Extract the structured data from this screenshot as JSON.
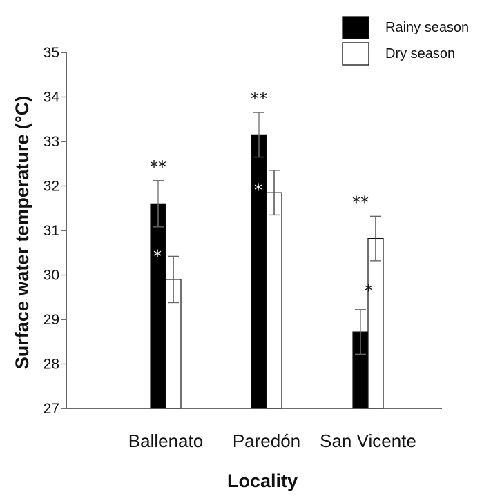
{
  "chart_data": {
    "type": "bar",
    "title": "",
    "xlabel": "Locality",
    "ylabel": "Surface water temperature (°C)",
    "ylim": [
      27,
      35
    ],
    "yticks": [
      "27",
      "28",
      "29",
      "30",
      "31",
      "32",
      "33",
      "34",
      "35"
    ],
    "categories": [
      "Ballenato",
      "Paredón",
      "San Vicente"
    ],
    "series": [
      {
        "name": "Rainy season",
        "color": "#000000",
        "values": [
          31.6,
          33.15,
          28.72
        ],
        "error": [
          0.52,
          0.5,
          0.5
        ],
        "annotations": [
          "",
          "",
          ""
        ]
      },
      {
        "name": "Dry season",
        "color": "#ffffff",
        "values": [
          29.9,
          31.85,
          30.82
        ],
        "error": [
          0.52,
          0.5,
          0.5
        ],
        "annotations": [
          "",
          "",
          ""
        ]
      }
    ],
    "markers": {
      "rainy_inside": [
        "*",
        "*",
        ""
      ],
      "dry_inside": [
        "",
        "",
        "*"
      ],
      "above_group": [
        "**",
        "**",
        "**"
      ]
    },
    "legend_position": "top-right"
  }
}
